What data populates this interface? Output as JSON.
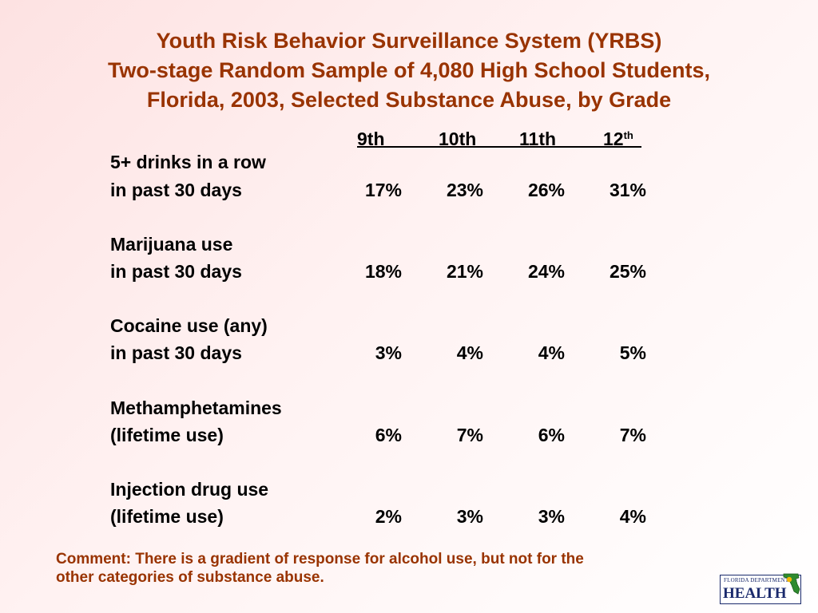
{
  "title": {
    "line1": "Youth Risk Behavior Surveillance System (YRBS)",
    "line2": "Two-stage Random Sample of 4,080 High School Students,",
    "line3": "Florida, 2003, Selected Substance Abuse, by Grade"
  },
  "table": {
    "headers": [
      {
        "text": "9th",
        "sup": ""
      },
      {
        "text": "10th",
        "sup": ""
      },
      {
        "text": "11th",
        "sup": ""
      },
      {
        "text": "12",
        "sup": "th"
      }
    ],
    "rows": [
      {
        "label1": "5+ drinks in a row",
        "label2": "in past 30 days",
        "values": [
          "17%",
          "23%",
          "26%",
          "31%"
        ]
      },
      {
        "label1": "Marijuana use",
        "label2": "in past 30 days",
        "values": [
          "18%",
          "21%",
          "24%",
          "25%"
        ]
      },
      {
        "label1": "Cocaine use (any)",
        "label2": "in past 30 days",
        "values": [
          "3%",
          "4%",
          "4%",
          "5%"
        ]
      },
      {
        "label1": "Methamphetamines",
        "label2": "(lifetime use)",
        "values": [
          "6%",
          "7%",
          "6%",
          "7%"
        ]
      },
      {
        "label1": "Injection drug use",
        "label2": "(lifetime use)",
        "values": [
          "2%",
          "3%",
          "3%",
          "4%"
        ]
      }
    ]
  },
  "comment": {
    "line1": "Comment: There is a gradient of response for alcohol use, but not for the",
    "line2": "other categories of substance abuse."
  },
  "logo": {
    "small_text": "FLORIDA DEPARTMENT OF",
    "big_text": "HEALTH",
    "icon": "florida-state-icon",
    "color": "#1a2a6c"
  },
  "colors": {
    "title": "#993300",
    "comment": "#993300",
    "background_start": "#fde2e2"
  }
}
